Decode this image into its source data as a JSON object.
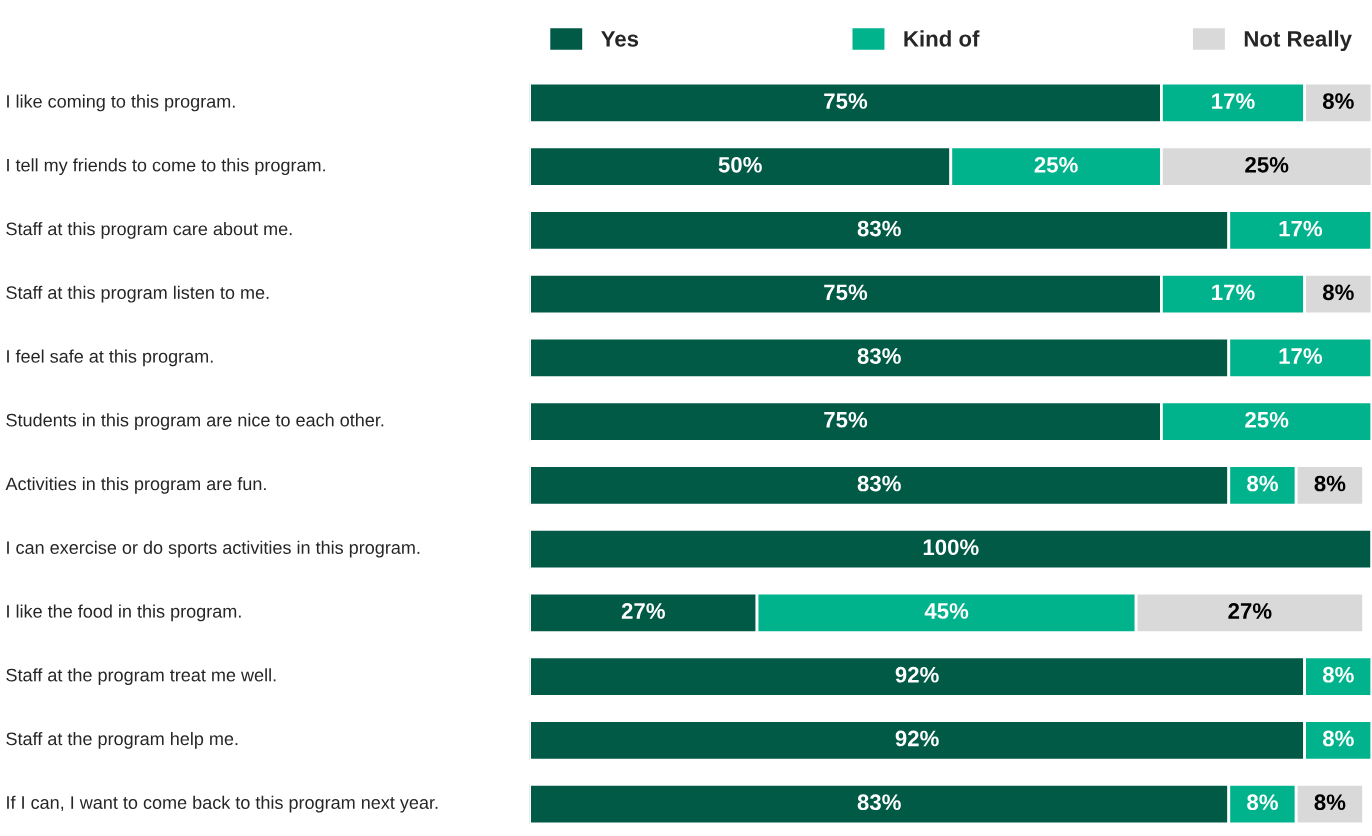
{
  "chart_data": {
    "type": "bar",
    "orientation": "horizontal",
    "stacked": true,
    "legend": "top",
    "categories": [
      "I like coming to this program.",
      "I tell my friends to come to this program.",
      "Staff at this program care about me.",
      "Staff at this program listen to me.",
      "I feel safe at this program.",
      "Students in this program are nice to each other.",
      "Activities in this program are fun.",
      "I can exercise or do sports activities in this program.",
      "I like the food in this program.",
      "Staff at the program treat me well.",
      "Staff at the program help me.",
      "If I can, I want to come back to this program next year."
    ],
    "series": [
      {
        "name": "Yes",
        "color": "#005a46",
        "values": [
          75,
          50,
          83,
          75,
          83,
          75,
          83,
          100,
          27,
          92,
          92,
          83
        ],
        "value_labels": [
          "75%",
          "50%",
          "83%",
          "75%",
          "83%",
          "75%",
          "83%",
          "100%",
          "27%",
          "92%",
          "92%",
          "83%"
        ]
      },
      {
        "name": "Kind of",
        "color": "#00b38c",
        "values": [
          17,
          25,
          17,
          17,
          17,
          25,
          8,
          null,
          45,
          8,
          8,
          8
        ],
        "value_labels": [
          "17%",
          "25%",
          "17%",
          "17%",
          "17%",
          "25%",
          "8%",
          null,
          "45%",
          "8%",
          "8%",
          "8%"
        ]
      },
      {
        "name": "Not Really",
        "color": "#d9d9d9",
        "values": [
          8,
          25,
          null,
          8,
          null,
          null,
          8,
          null,
          27,
          null,
          null,
          8
        ],
        "value_labels": [
          "8%",
          "25%",
          null,
          "8%",
          null,
          null,
          "8%",
          null,
          "27%",
          null,
          null,
          "8%"
        ]
      }
    ]
  }
}
